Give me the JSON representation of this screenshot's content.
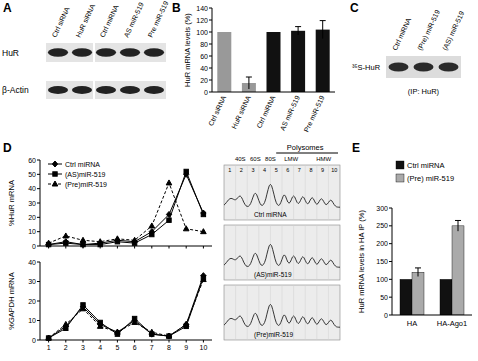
{
  "panel_labels": [
    "A",
    "B",
    "C",
    "D",
    "E"
  ],
  "blot_a": {
    "row_labels": [
      "HuR",
      "β-Actin"
    ],
    "lane_labels": [
      "Ctrl siRNA",
      "HuR siRNA",
      "Ctrl miRNA",
      "AS miR-519",
      "Pre miR-519"
    ]
  },
  "blot_c": {
    "row_label": "³⁵S-HuR",
    "caption": "(IP: HuR)",
    "lane_labels": [
      "Ctrl miRNA",
      "(Pre) miR-519",
      "(AS) miR-519"
    ]
  },
  "polysomes": {
    "header": "Polysomes",
    "peaks": [
      "40S",
      "60S",
      "80S"
    ],
    "fraction_weights": [
      "LMW",
      "HMW"
    ],
    "fractions": [
      1,
      2,
      3,
      4,
      5,
      6,
      7,
      8,
      9,
      10
    ],
    "profiles": [
      "Ctrl miRNA",
      "(AS)miR-519",
      "(Pre)miR-519"
    ]
  },
  "chart_data": [
    {
      "type": "bar",
      "ylabel": "HuR mRNA levels (%)",
      "categories": [
        "Ctrl siRNA",
        "HuR siRNA",
        "Ctrl miRNA",
        "AS miR-519",
        "Pre miR-519"
      ],
      "values": [
        100,
        15,
        100,
        102,
        104
      ],
      "errors": [
        null,
        10,
        null,
        7,
        15
      ],
      "colors": [
        "#999999",
        "#999999",
        "#111111",
        "#111111",
        "#111111"
      ],
      "ylim": [
        0,
        140
      ],
      "yticks": [
        0,
        20,
        40,
        60,
        80,
        100,
        120,
        140
      ]
    },
    {
      "type": "line",
      "ylabel": "%HuR mRNA",
      "x": [
        1,
        2,
        3,
        4,
        5,
        6,
        7,
        8,
        9,
        10
      ],
      "xlim": [
        0.5,
        10.5
      ],
      "xticks": [
        1,
        2,
        3,
        4,
        5,
        6,
        7,
        8,
        9,
        10
      ],
      "ylim": [
        0,
        60
      ],
      "yticks": [
        0,
        10,
        20,
        30,
        40,
        50,
        60
      ],
      "legend": "top-left",
      "series": [
        {
          "name": "Ctrl miRNA",
          "color": "#000000",
          "marker": "diamond",
          "line_style": "solid",
          "values": [
            1,
            3,
            1,
            2,
            4,
            3,
            10,
            22,
            50,
            23
          ]
        },
        {
          "name": "(AS)miR-519",
          "color": "#000000",
          "marker": "square",
          "line_style": "solid",
          "values": [
            1,
            2,
            1,
            1,
            3,
            2,
            8,
            18,
            52,
            22
          ]
        },
        {
          "name": "(Pre)miR-519",
          "color": "#000000",
          "marker": "triangle",
          "line_style": "dashed",
          "values": [
            2,
            7,
            4,
            3,
            5,
            4,
            14,
            44,
            12,
            10
          ]
        }
      ]
    },
    {
      "type": "line",
      "ylabel": "%GAPDH mRNA",
      "x": [
        1,
        2,
        3,
        4,
        5,
        6,
        7,
        8,
        9,
        10
      ],
      "xlim": [
        0.5,
        10.5
      ],
      "xticks": [
        1,
        2,
        3,
        4,
        5,
        6,
        7,
        8,
        9,
        10
      ],
      "ylim": [
        0,
        40
      ],
      "yticks": [
        0,
        10,
        20,
        30,
        40
      ],
      "series": [
        {
          "color": "#000000",
          "marker": "diamond",
          "line_style": "solid",
          "values": [
            1,
            7,
            17,
            8,
            4,
            10,
            3,
            2,
            8,
            33
          ]
        },
        {
          "color": "#000000",
          "marker": "square",
          "line_style": "solid",
          "values": [
            1,
            6,
            18,
            9,
            3,
            11,
            3,
            2,
            7,
            32
          ]
        },
        {
          "color": "#000000",
          "marker": "triangle",
          "line_style": "dashed",
          "values": [
            1,
            8,
            16,
            7,
            4,
            9,
            4,
            2,
            8,
            31
          ]
        }
      ]
    },
    {
      "type": "bar",
      "ylabel": "HuR mRNA levels in HA IP (%)",
      "categories": [
        "HA",
        "HA-Ago1"
      ],
      "ylim": [
        0,
        300
      ],
      "yticks": [
        0,
        50,
        100,
        150,
        200,
        250,
        300
      ],
      "legend": "top-left",
      "series": [
        {
          "name": "Ctrl miRNA",
          "color": "#111111",
          "values": [
            100,
            100
          ]
        },
        {
          "name": "(Pre) miR-519",
          "color": "#aaaaaa",
          "values": [
            120,
            250
          ],
          "errors": [
            12,
            15
          ]
        }
      ]
    }
  ]
}
